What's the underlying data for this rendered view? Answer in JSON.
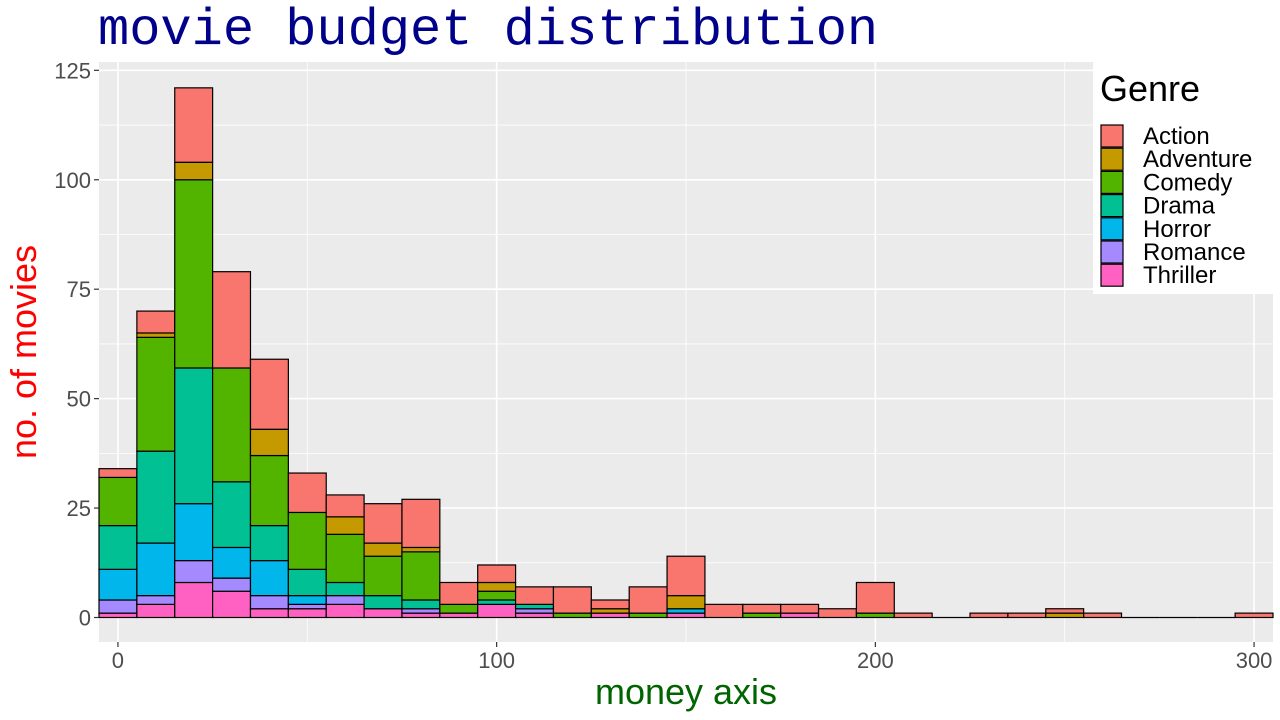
{
  "chart_data": {
    "type": "bar",
    "stacked": true,
    "title": "movie budget distribution",
    "xlabel": "money axis",
    "ylabel": "no. of movies",
    "xlim": [
      -5,
      305
    ],
    "ylim": [
      0,
      125
    ],
    "x_ticks": [
      0,
      100,
      200,
      300
    ],
    "y_ticks": [
      0,
      25,
      50,
      75,
      100,
      125
    ],
    "grid": true,
    "legend": {
      "title": "Genre",
      "placement": "right"
    },
    "bin_width": 10,
    "bin_centers": [
      0,
      10,
      20,
      30,
      40,
      50,
      60,
      70,
      80,
      90,
      100,
      110,
      120,
      130,
      140,
      150,
      160,
      170,
      180,
      190,
      200,
      210,
      220,
      230,
      240,
      250,
      260,
      270,
      280,
      290,
      300
    ],
    "series": [
      {
        "name": "Thriller",
        "color": "#FF61C3",
        "values": [
          1,
          3,
          8,
          6,
          2,
          2,
          3,
          2,
          1,
          1,
          3,
          1,
          0,
          1,
          0,
          1,
          0,
          0,
          1,
          0,
          0,
          0,
          0,
          0,
          0,
          0,
          0,
          0,
          0,
          0,
          0
        ]
      },
      {
        "name": "Romance",
        "color": "#A58AFF",
        "values": [
          3,
          2,
          5,
          3,
          3,
          1,
          2,
          0,
          1,
          0,
          0,
          1,
          0,
          0,
          0,
          0,
          0,
          0,
          0,
          0,
          0,
          0,
          0,
          0,
          0,
          0,
          0,
          0,
          0,
          0,
          0
        ]
      },
      {
        "name": "Horror",
        "color": "#00B6EB",
        "values": [
          7,
          12,
          13,
          7,
          8,
          2,
          0,
          0,
          0,
          0,
          0,
          0,
          0,
          0,
          0,
          1,
          0,
          0,
          0,
          0,
          0,
          0,
          0,
          0,
          0,
          0,
          0,
          0,
          0,
          0,
          0
        ]
      },
      {
        "name": "Drama",
        "color": "#00C094",
        "values": [
          10,
          21,
          31,
          15,
          8,
          6,
          3,
          3,
          2,
          0,
          1,
          1,
          0,
          0,
          0,
          0,
          0,
          0,
          0,
          0,
          0,
          0,
          0,
          0,
          0,
          0,
          0,
          0,
          0,
          0,
          0
        ]
      },
      {
        "name": "Comedy",
        "color": "#53B400",
        "values": [
          11,
          26,
          43,
          26,
          16,
          13,
          11,
          9,
          11,
          2,
          2,
          0,
          1,
          0,
          1,
          0,
          0,
          1,
          0,
          0,
          1,
          0,
          0,
          0,
          0,
          0,
          0,
          0,
          0,
          0,
          0
        ]
      },
      {
        "name": "Adventure",
        "color": "#C49A00",
        "values": [
          0,
          1,
          4,
          0,
          6,
          0,
          4,
          3,
          1,
          0,
          2,
          0,
          0,
          1,
          0,
          3,
          0,
          0,
          0,
          0,
          0,
          0,
          0,
          0,
          0,
          1,
          0,
          0,
          0,
          0,
          0
        ]
      },
      {
        "name": "Action",
        "color": "#F8766D",
        "values": [
          2,
          5,
          17,
          22,
          16,
          9,
          5,
          9,
          11,
          5,
          4,
          4,
          6,
          2,
          6,
          9,
          3,
          2,
          2,
          2,
          7,
          1,
          0,
          1,
          1,
          1,
          1,
          0,
          0,
          0,
          1
        ]
      }
    ],
    "legend_order": [
      "Action",
      "Adventure",
      "Comedy",
      "Drama",
      "Horror",
      "Romance",
      "Thriller"
    ]
  }
}
